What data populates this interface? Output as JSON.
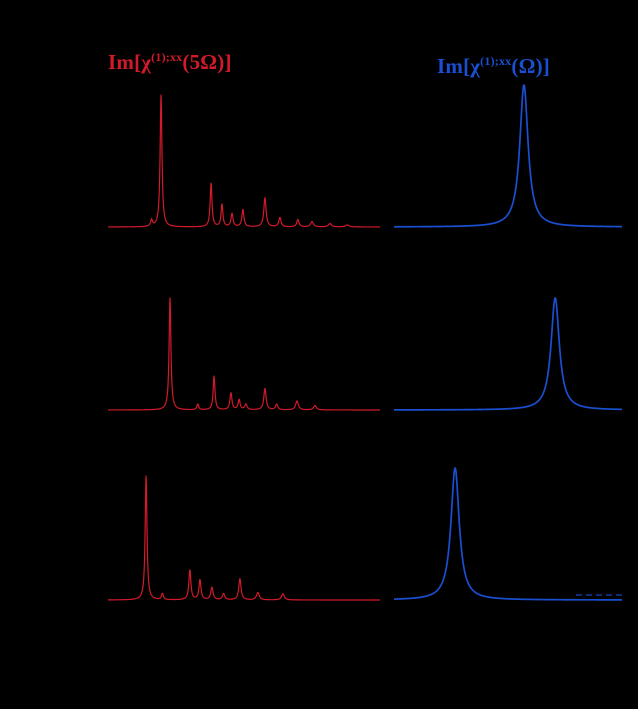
{
  "figure": {
    "background": "#000000",
    "left_label": {
      "pre": "Im[χ",
      "sup": "(1);xx",
      "post": "(5Ω)]",
      "color": "#d21a2a"
    },
    "right_label": {
      "pre": "Im[χ",
      "sup": "(1);xx",
      "post": "(Ω)]",
      "color": "#1a4fd2"
    }
  },
  "chart_data": [
    {
      "id": "red-row1",
      "type": "line",
      "title": "Im[χ(1);xx(5Ω)] — row 1",
      "color": "#d21a2a",
      "xlabel": "",
      "ylabel": "",
      "x_range": [
        0,
        1
      ],
      "grid": false,
      "peaks": [
        {
          "c": 0.16,
          "h": 0.05,
          "w": 0.004
        },
        {
          "c": 0.195,
          "h": 1.0,
          "w": 0.004
        },
        {
          "c": 0.379,
          "h": 0.33,
          "w": 0.004
        },
        {
          "c": 0.419,
          "h": 0.17,
          "w": 0.004
        },
        {
          "c": 0.456,
          "h": 0.1,
          "w": 0.0045
        },
        {
          "c": 0.496,
          "h": 0.13,
          "w": 0.0045
        },
        {
          "c": 0.577,
          "h": 0.22,
          "w": 0.005
        },
        {
          "c": 0.632,
          "h": 0.07,
          "w": 0.005
        },
        {
          "c": 0.698,
          "h": 0.055,
          "w": 0.005
        },
        {
          "c": 0.75,
          "h": 0.04,
          "w": 0.006
        },
        {
          "c": 0.816,
          "h": 0.025,
          "w": 0.007
        },
        {
          "c": 0.88,
          "h": 0.015,
          "w": 0.008
        }
      ]
    },
    {
      "id": "blue-row1",
      "type": "line",
      "title": "Im[χ(1);xx(Ω)] — row 1",
      "color": "#1a4fd2",
      "xlabel": "",
      "ylabel": "",
      "x_range": [
        0,
        1
      ],
      "grid": false,
      "peaks": [
        {
          "c": 0.57,
          "h": 1.0,
          "w": 0.022
        }
      ]
    },
    {
      "id": "red-row2",
      "type": "line",
      "title": "Im[χ(1);xx(5Ω)] — row 2",
      "color": "#d21a2a",
      "xlabel": "",
      "ylabel": "",
      "x_range": [
        0,
        1
      ],
      "grid": false,
      "peaks": [
        {
          "c": 0.228,
          "h": 1.0,
          "w": 0.004
        },
        {
          "c": 0.33,
          "h": 0.05,
          "w": 0.004
        },
        {
          "c": 0.39,
          "h": 0.3,
          "w": 0.004
        },
        {
          "c": 0.452,
          "h": 0.15,
          "w": 0.0045
        },
        {
          "c": 0.482,
          "h": 0.09,
          "w": 0.0045
        },
        {
          "c": 0.507,
          "h": 0.05,
          "w": 0.005
        },
        {
          "c": 0.577,
          "h": 0.19,
          "w": 0.005
        },
        {
          "c": 0.62,
          "h": 0.05,
          "w": 0.005
        },
        {
          "c": 0.695,
          "h": 0.08,
          "w": 0.006
        },
        {
          "c": 0.761,
          "h": 0.04,
          "w": 0.006
        }
      ]
    },
    {
      "id": "blue-row2",
      "type": "line",
      "title": "Im[χ(1);xx(Ω)] — row 2",
      "color": "#1a4fd2",
      "xlabel": "",
      "ylabel": "",
      "x_range": [
        0,
        1
      ],
      "grid": false,
      "peaks": [
        {
          "c": 0.707,
          "h": 1.0,
          "w": 0.022
        }
      ]
    },
    {
      "id": "red-row3",
      "type": "line",
      "title": "Im[χ(1);xx(5Ω)] — row 3",
      "color": "#d21a2a",
      "xlabel": "",
      "ylabel": "",
      "x_range": [
        0,
        1
      ],
      "grid": false,
      "peaks": [
        {
          "c": 0.14,
          "h": 1.0,
          "w": 0.004
        },
        {
          "c": 0.2,
          "h": 0.05,
          "w": 0.004
        },
        {
          "c": 0.301,
          "h": 0.24,
          "w": 0.0045
        },
        {
          "c": 0.338,
          "h": 0.16,
          "w": 0.0045
        },
        {
          "c": 0.382,
          "h": 0.1,
          "w": 0.005
        },
        {
          "c": 0.425,
          "h": 0.05,
          "w": 0.005
        },
        {
          "c": 0.485,
          "h": 0.17,
          "w": 0.005
        },
        {
          "c": 0.551,
          "h": 0.06,
          "w": 0.006
        },
        {
          "c": 0.643,
          "h": 0.05,
          "w": 0.006
        }
      ]
    },
    {
      "id": "blue-row3",
      "type": "line",
      "title": "Im[χ(1);xx(Ω)] — row 3",
      "color": "#1a4fd2",
      "xlabel": "",
      "ylabel": "",
      "x_range": [
        0,
        1
      ],
      "grid": false,
      "peaks": [
        {
          "c": 0.268,
          "h": 1.0,
          "w": 0.022
        }
      ]
    }
  ]
}
